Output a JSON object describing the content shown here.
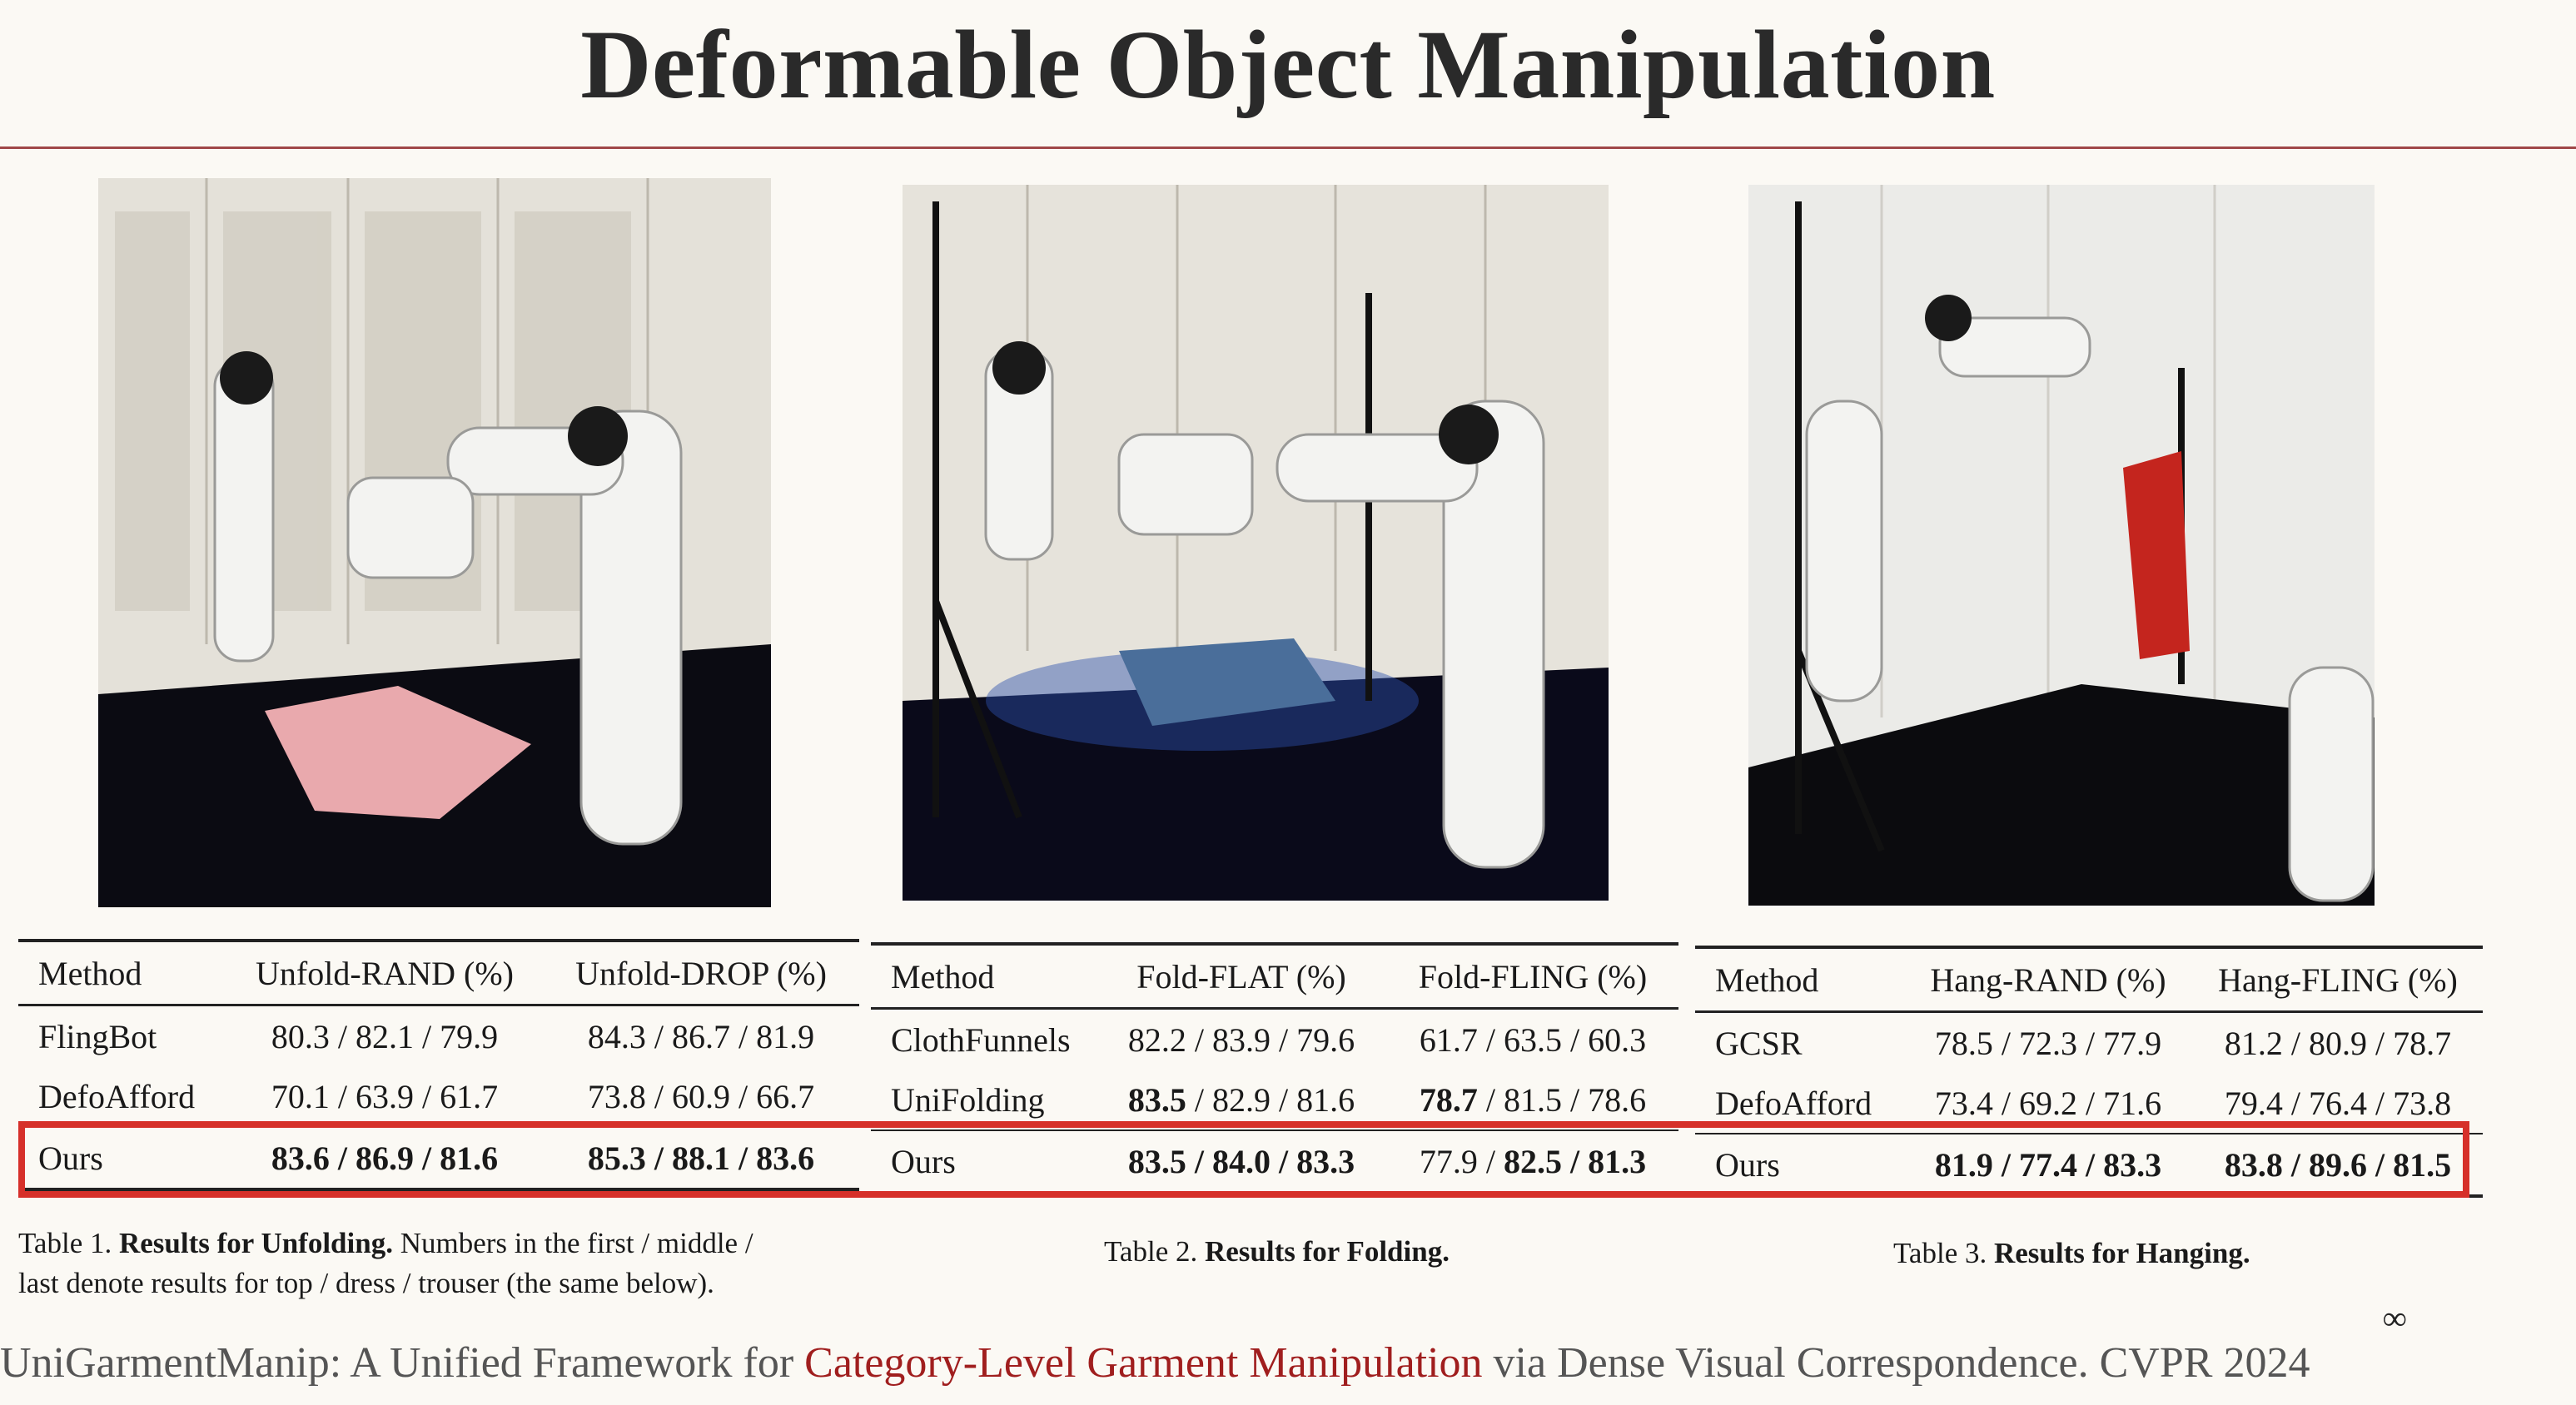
{
  "slide": {
    "title": "Deformable Object Manipulation",
    "page_marker": "∞",
    "footer": {
      "part1": "UniGarmentManip: A Unified Framework for ",
      "highlight": "Category-Level Garment Manipulation",
      "part2": " via Dense Visual Correspondence. CVPR 2024"
    }
  },
  "table1": {
    "headers": [
      "Method",
      "Unfold-RAND (%)",
      "Unfold-DROP (%)"
    ],
    "rows": [
      {
        "method": "FlingBot",
        "a": "80.3 / 82.1 / 79.9",
        "b": "84.3 / 86.7 / 81.9"
      },
      {
        "method": "DefoAfford",
        "a": "70.1 / 63.9 / 61.7",
        "b": "73.8 / 60.9 / 66.7"
      },
      {
        "method": "Ours",
        "a": "83.6 / 86.9 / 81.6",
        "b": "85.3 / 88.1 / 83.6"
      }
    ],
    "caption_label": "Table 1.",
    "caption_bold": "Results for Unfolding.",
    "caption_rest1": "Numbers in the first / middle /",
    "caption_rest2": "last denote results for top / dress / trouser (the same below)."
  },
  "table2": {
    "headers": [
      "Method",
      "Fold-FLAT (%)",
      "Fold-FLING (%)"
    ],
    "rows": [
      {
        "method": "ClothFunnels",
        "a": "82.2 / 83.9 / 79.6",
        "b": "61.7 / 63.5 / 60.3"
      },
      {
        "method": "UniFolding",
        "a1": "83.5",
        "a2": " / 82.9 / 81.6",
        "b1": "78.7",
        "b2": " / 81.5 / 78.6"
      },
      {
        "method": "Ours",
        "a": "83.5 / 84.0 / 83.3",
        "b1": "77.9 / ",
        "b2": "82.5 / 81.3"
      }
    ],
    "caption_label": "Table 2.",
    "caption_bold": "Results for Folding."
  },
  "table3": {
    "headers": [
      "Method",
      "Hang-RAND (%)",
      "Hang-FLING (%)"
    ],
    "rows": [
      {
        "method": "GCSR",
        "a": "78.5 / 72.3 / 77.9",
        "b": "81.2 / 80.9 / 78.7"
      },
      {
        "method": "DefoAfford",
        "a": "73.4 / 69.2 / 71.6",
        "b": "79.4 / 76.4 / 73.8"
      },
      {
        "method": "Ours",
        "a": "81.9 / 77.4 / 83.3",
        "b": "83.8 / 89.6 / 81.5"
      }
    ],
    "caption_label": "Table 3.",
    "caption_bold": "Results for Hanging."
  },
  "colors": {
    "highlight_box": "#d6302a",
    "footer_accent": "#a01e1e",
    "title_rule": "#a04848"
  }
}
